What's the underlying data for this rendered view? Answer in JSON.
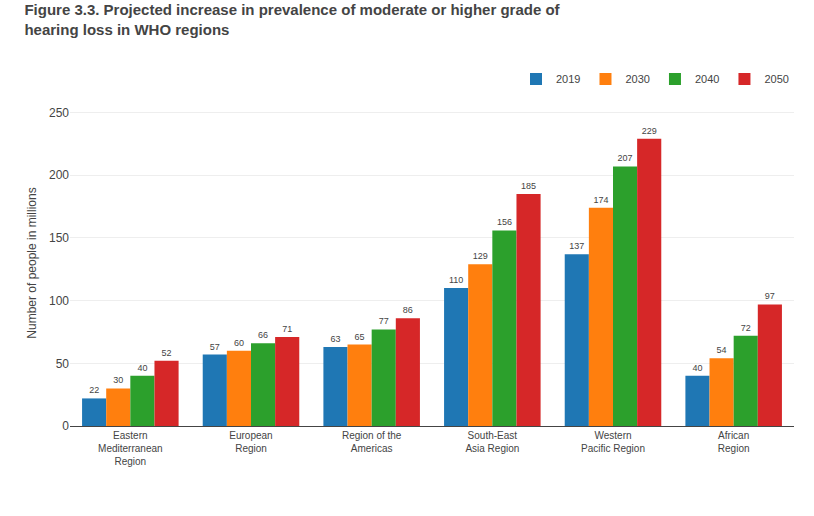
{
  "chart_data": {
    "type": "bar",
    "title": "Figure 3.3. Projected increase in prevalence of moderate or higher grade of\nhearing loss in WHO regions",
    "ylabel": "Number of people in millions",
    "categories": [
      "Eastern\nMediterranean\nRegion",
      "European\nRegion",
      "Region of the\nAmericas",
      "South-East\nAsia Region",
      "Western\nPacific Region",
      "African\nRegion"
    ],
    "series": [
      {
        "name": "2019",
        "values": [
          22,
          57,
          63,
          110,
          137,
          40
        ]
      },
      {
        "name": "2030",
        "values": [
          30,
          60,
          65,
          129,
          174,
          54
        ]
      },
      {
        "name": "2040",
        "values": [
          40,
          66,
          77,
          156,
          207,
          72
        ]
      },
      {
        "name": "2050",
        "values": [
          52,
          71,
          86,
          185,
          229,
          97
        ]
      }
    ],
    "ylim": [
      0,
      260
    ],
    "yticks": [
      0,
      50,
      100,
      150,
      200,
      250
    ],
    "grid": true,
    "legend": "top right",
    "data_labels": true
  }
}
